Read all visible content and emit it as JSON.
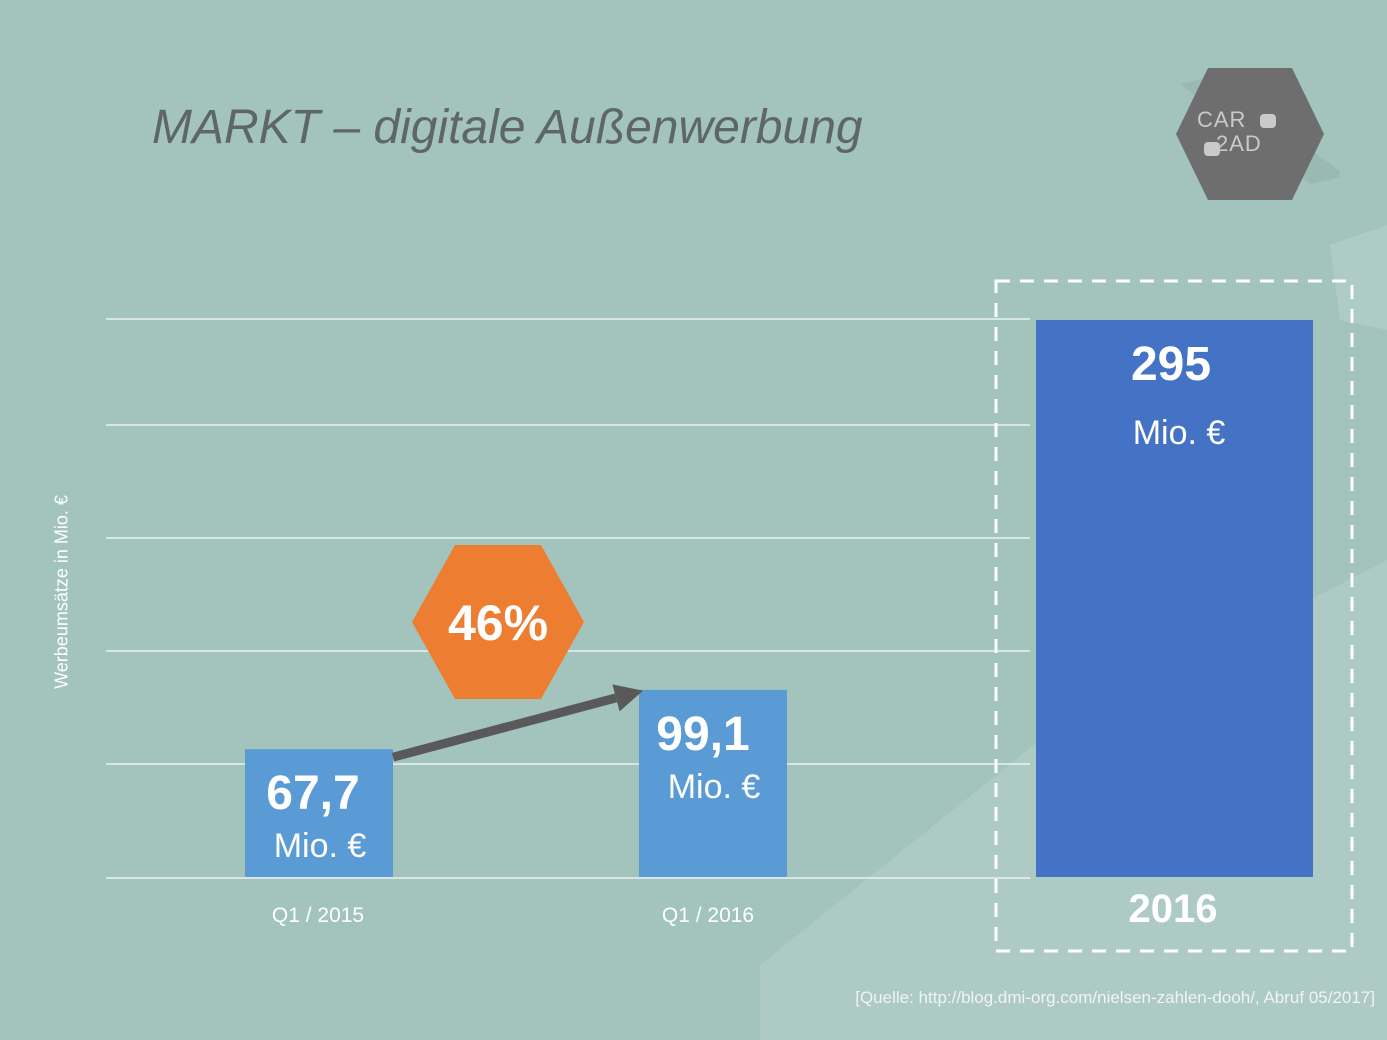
{
  "title": "MARKT – digitale Außenwerbung",
  "logo": {
    "line1": "CAR",
    "line2": "2AD"
  },
  "source_note": "[Quelle: http://blog.dmi-org.com/nielsen-zahlen-dooh/, Abruf 05/2017]",
  "colors": {
    "background": "#a3c4bd",
    "bar_quarter": "#5b9bd5",
    "bar_year": "#4472c4",
    "growth_badge": "#ed7d31",
    "arrow": "#595959",
    "logo": "#6e6e6e"
  },
  "chart_data": {
    "type": "bar",
    "title": "MARKT – digitale Außenwerbung",
    "ylabel": "Werbeumsätze in Mio. €",
    "xlabel": "",
    "ylim": [
      0,
      295
    ],
    "grid": true,
    "categories": [
      "Q1 / 2015",
      "Q1 / 2016",
      "2016"
    ],
    "values": [
      67.7,
      99.1,
      295
    ],
    "value_labels": [
      "67,7",
      "99,1",
      "295"
    ],
    "unit_label": "Mio. €",
    "highlighted_category": "2016",
    "growth_annotation": {
      "from": "Q1 / 2015",
      "to": "Q1 / 2016",
      "label": "46%"
    }
  }
}
